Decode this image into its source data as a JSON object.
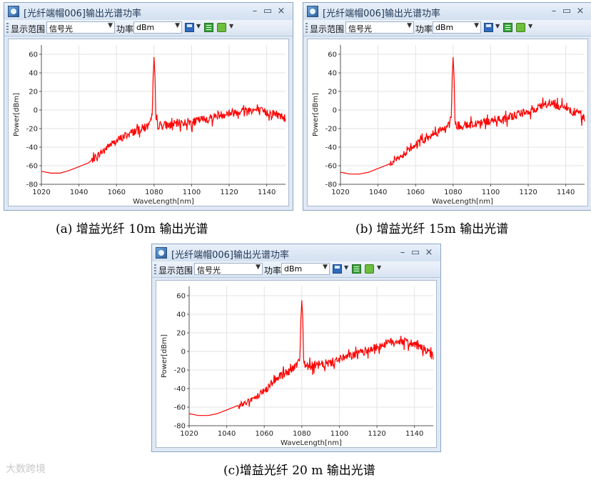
{
  "windows": [
    {
      "title": "[光纤端帽006]输出光谱功率",
      "range_label": "显示范围",
      "range_value": "信号光",
      "power_label": "功率",
      "power_value": "dBm",
      "min_button": "–",
      "max_button": "▭",
      "close_button": "×"
    },
    {
      "title": "[光纤端帽006]输出光谱功率",
      "range_label": "显示范围",
      "range_value": "信号光",
      "power_label": "功率",
      "power_value": "dBm",
      "min_button": "–",
      "max_button": "▭",
      "close_button": "×"
    },
    {
      "title": "[光纤端帽006]输出光谱功率",
      "range_label": "显示范围",
      "range_value": "信号光",
      "power_label": "功率",
      "power_value": "dBm",
      "min_button": "–",
      "max_button": "▭",
      "close_button": "×"
    }
  ],
  "captions": [
    "(a)  增益光纤 10m 输出光谱",
    "(b)  增益光纤 15m 输出光谱",
    "(c)增益光纤 20 m 输出光谱"
  ],
  "watermark": "大数跨境",
  "chart_data": [
    {
      "type": "line",
      "xlabel": "WaveLength[nm]",
      "ylabel": "Power[dBm]",
      "xlim": [
        1020,
        1150
      ],
      "ylim": [
        -80,
        70
      ],
      "xticks": [
        1020,
        1040,
        1060,
        1080,
        1100,
        1120,
        1140
      ],
      "yticks": [
        -80,
        -60,
        -40,
        -20,
        0,
        20,
        40,
        60
      ],
      "grid": true,
      "line_color": "#ff0000",
      "x": [
        1020,
        1025,
        1030,
        1035,
        1040,
        1045,
        1048,
        1052,
        1056,
        1060,
        1064,
        1068,
        1072,
        1076,
        1078,
        1079,
        1079.5,
        1080,
        1080.5,
        1081,
        1082,
        1086,
        1090,
        1095,
        1100,
        1105,
        1110,
        1115,
        1120,
        1125,
        1130,
        1135,
        1140,
        1145,
        1150
      ],
      "y": [
        -66,
        -68,
        -68,
        -65,
        -61,
        -57,
        -52,
        -45,
        -38,
        -33,
        -28,
        -24,
        -20,
        -18,
        -15,
        -5,
        35,
        57,
        35,
        -10,
        -16,
        -16,
        -15,
        -13,
        -13,
        -10,
        -8,
        -5,
        -3,
        -1,
        1,
        0,
        -2,
        -4,
        -8
      ]
    },
    {
      "type": "line",
      "xlabel": "WaveLength[nm]",
      "ylabel": "Power[dBm]",
      "xlim": [
        1020,
        1150
      ],
      "ylim": [
        -80,
        70
      ],
      "xticks": [
        1020,
        1040,
        1060,
        1080,
        1100,
        1120,
        1140
      ],
      "yticks": [
        -80,
        -60,
        -40,
        -20,
        0,
        20,
        40,
        60
      ],
      "grid": true,
      "line_color": "#ff0000",
      "x": [
        1020,
        1025,
        1030,
        1035,
        1040,
        1045,
        1050,
        1054,
        1058,
        1062,
        1066,
        1070,
        1074,
        1077,
        1079,
        1079.5,
        1080,
        1080.5,
        1081,
        1082,
        1086,
        1090,
        1095,
        1100,
        1105,
        1110,
        1115,
        1120,
        1125,
        1130,
        1135,
        1140,
        1145,
        1150
      ],
      "y": [
        -67,
        -69,
        -69,
        -67,
        -63,
        -59,
        -54,
        -47,
        -41,
        -35,
        -29,
        -25,
        -21,
        -19,
        -8,
        35,
        57,
        35,
        -12,
        -17,
        -16,
        -15,
        -13,
        -11,
        -10,
        -7,
        -4,
        -1,
        2,
        7,
        6,
        3,
        -2,
        -8
      ]
    },
    {
      "type": "line",
      "xlabel": "WaveLength[nm]",
      "ylabel": "Power[dBm]",
      "xlim": [
        1020,
        1150
      ],
      "ylim": [
        -80,
        70
      ],
      "xticks": [
        1020,
        1040,
        1060,
        1080,
        1100,
        1120,
        1140
      ],
      "yticks": [
        -80,
        -60,
        -40,
        -20,
        0,
        20,
        40,
        60
      ],
      "grid": true,
      "line_color": "#ff0000",
      "x": [
        1020,
        1025,
        1030,
        1035,
        1040,
        1045,
        1050,
        1055,
        1058,
        1062,
        1066,
        1070,
        1074,
        1077,
        1079,
        1079.5,
        1080,
        1080.5,
        1081,
        1082,
        1086,
        1090,
        1095,
        1100,
        1105,
        1110,
        1115,
        1120,
        1125,
        1130,
        1135,
        1140,
        1145,
        1150
      ],
      "y": [
        -67,
        -69,
        -69,
        -67,
        -63,
        -59,
        -55,
        -50,
        -45,
        -38,
        -30,
        -24,
        -20,
        -15,
        -5,
        35,
        55,
        35,
        -10,
        -15,
        -15,
        -14,
        -12,
        -8,
        -5,
        -2,
        2,
        5,
        9,
        12,
        11,
        8,
        3,
        -5
      ]
    }
  ]
}
